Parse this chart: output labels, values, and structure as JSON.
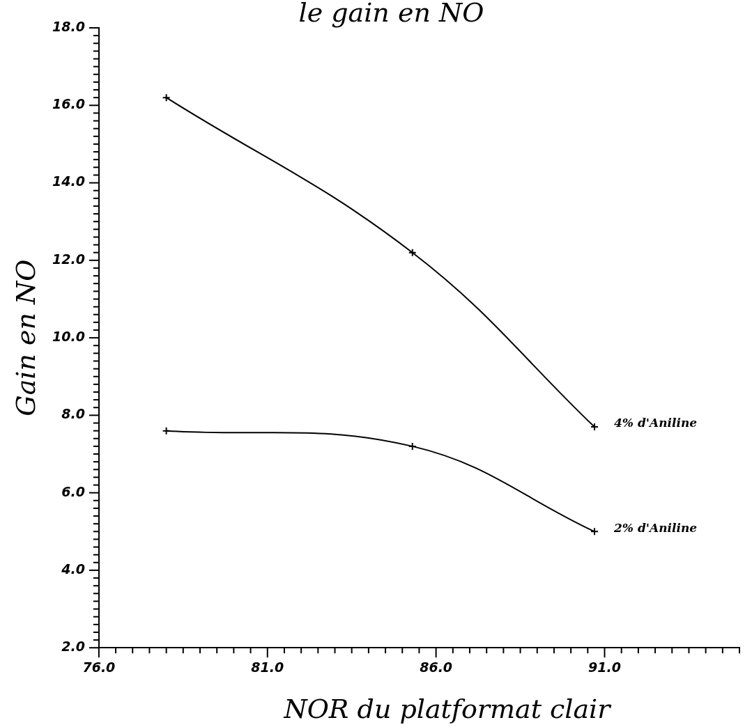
{
  "chart_data": {
    "type": "line",
    "title": "le gain en NO",
    "xlabel": "NOR du platformat clair",
    "ylabel": "Gain en NO",
    "x": [
      78,
      85.3,
      90.7
    ],
    "series": [
      {
        "name": "4% d'Aniline",
        "color": "#000000",
        "values": [
          16.2,
          12.2,
          7.7
        ]
      },
      {
        "name": "2% d'Aniline",
        "color": "#000000",
        "values": [
          7.6,
          7.2,
          5.0
        ]
      }
    ],
    "marker": "cross",
    "line_style": "solid",
    "grid": false,
    "legend": false,
    "xlim": [
      76,
      95
    ],
    "xticks": [
      {
        "value": 76,
        "label": "76.0"
      },
      {
        "value": 76.5,
        "label": null
      },
      {
        "value": 77,
        "label": null
      },
      {
        "value": 77.5,
        "label": null
      },
      {
        "value": 78,
        "label": null
      },
      {
        "value": 78.5,
        "label": null
      },
      {
        "value": 79,
        "label": null
      },
      {
        "value": 79.5,
        "label": null
      },
      {
        "value": 80,
        "label": null
      },
      {
        "value": 80.5,
        "label": null
      },
      {
        "value": 81,
        "label": "81.0"
      },
      {
        "value": 81.5,
        "label": null
      },
      {
        "value": 82,
        "label": null
      },
      {
        "value": 82.5,
        "label": null
      },
      {
        "value": 83,
        "label": null
      },
      {
        "value": 83.5,
        "label": null
      },
      {
        "value": 84,
        "label": null
      },
      {
        "value": 84.5,
        "label": null
      },
      {
        "value": 85,
        "label": null
      },
      {
        "value": 85.5,
        "label": null
      },
      {
        "value": 86,
        "label": "86.0"
      },
      {
        "value": 86.5,
        "label": null
      },
      {
        "value": 87,
        "label": null
      },
      {
        "value": 87.5,
        "label": null
      },
      {
        "value": 88,
        "label": null
      },
      {
        "value": 88.5,
        "label": null
      },
      {
        "value": 89,
        "label": null
      },
      {
        "value": 89.5,
        "label": null
      },
      {
        "value": 90,
        "label": null
      },
      {
        "value": 90.5,
        "label": null
      },
      {
        "value": 91,
        "label": "91.0"
      },
      {
        "value": 91.5,
        "label": null
      },
      {
        "value": 92,
        "label": null
      },
      {
        "value": 92.5,
        "label": null
      },
      {
        "value": 93,
        "label": null
      },
      {
        "value": 93.5,
        "label": null
      },
      {
        "value": 94,
        "label": null
      },
      {
        "value": 94.5,
        "label": null
      },
      {
        "value": 95,
        "label": null
      }
    ],
    "ylim": [
      2,
      18
    ],
    "yticks": [
      {
        "value": 2,
        "label": "2.0"
      },
      {
        "value": 2.2,
        "label": null
      },
      {
        "value": 2.4,
        "label": null
      },
      {
        "value": 2.6,
        "label": null
      },
      {
        "value": 2.8,
        "label": null
      },
      {
        "value": 3,
        "label": null
      },
      {
        "value": 3.2,
        "label": null
      },
      {
        "value": 3.4,
        "label": null
      },
      {
        "value": 3.6,
        "label": null
      },
      {
        "value": 3.8,
        "label": null
      },
      {
        "value": 4,
        "label": "4.0"
      },
      {
        "value": 4.2,
        "label": null
      },
      {
        "value": 4.4,
        "label": null
      },
      {
        "value": 4.6,
        "label": null
      },
      {
        "value": 4.8,
        "label": null
      },
      {
        "value": 5,
        "label": null
      },
      {
        "value": 5.2,
        "label": null
      },
      {
        "value": 5.4,
        "label": null
      },
      {
        "value": 5.6,
        "label": null
      },
      {
        "value": 5.8,
        "label": null
      },
      {
        "value": 6,
        "label": "6.0"
      },
      {
        "value": 6.2,
        "label": null
      },
      {
        "value": 6.4,
        "label": null
      },
      {
        "value": 6.6,
        "label": null
      },
      {
        "value": 6.8,
        "label": null
      },
      {
        "value": 7,
        "label": null
      },
      {
        "value": 7.2,
        "label": null
      },
      {
        "value": 7.4,
        "label": null
      },
      {
        "value": 7.6,
        "label": null
      },
      {
        "value": 7.8,
        "label": null
      },
      {
        "value": 8,
        "label": "8.0"
      },
      {
        "value": 8.2,
        "label": null
      },
      {
        "value": 8.4,
        "label": null
      },
      {
        "value": 8.6,
        "label": null
      },
      {
        "value": 8.8,
        "label": null
      },
      {
        "value": 9,
        "label": null
      },
      {
        "value": 9.2,
        "label": null
      },
      {
        "value": 9.4,
        "label": null
      },
      {
        "value": 9.6,
        "label": null
      },
      {
        "value": 9.8,
        "label": null
      },
      {
        "value": 10,
        "label": "10.0"
      },
      {
        "value": 10.2,
        "label": null
      },
      {
        "value": 10.4,
        "label": null
      },
      {
        "value": 10.6,
        "label": null
      },
      {
        "value": 10.8,
        "label": null
      },
      {
        "value": 11,
        "label": null
      },
      {
        "value": 11.2,
        "label": null
      },
      {
        "value": 11.4,
        "label": null
      },
      {
        "value": 11.6,
        "label": null
      },
      {
        "value": 11.8,
        "label": null
      },
      {
        "value": 12,
        "label": "12.0"
      },
      {
        "value": 12.2,
        "label": null
      },
      {
        "value": 12.4,
        "label": null
      },
      {
        "value": 12.6,
        "label": null
      },
      {
        "value": 12.8,
        "label": null
      },
      {
        "value": 13,
        "label": null
      },
      {
        "value": 13.2,
        "label": null
      },
      {
        "value": 13.4,
        "label": null
      },
      {
        "value": 13.6,
        "label": null
      },
      {
        "value": 13.8,
        "label": null
      },
      {
        "value": 14,
        "label": "14.0"
      },
      {
        "value": 14.2,
        "label": null
      },
      {
        "value": 14.4,
        "label": null
      },
      {
        "value": 14.6,
        "label": null
      },
      {
        "value": 14.8,
        "label": null
      },
      {
        "value": 15,
        "label": null
      },
      {
        "value": 15.2,
        "label": null
      },
      {
        "value": 15.4,
        "label": null
      },
      {
        "value": 15.6,
        "label": null
      },
      {
        "value": 15.8,
        "label": null
      },
      {
        "value": 16,
        "label": "16.0"
      },
      {
        "value": 16.2,
        "label": null
      },
      {
        "value": 16.4,
        "label": null
      },
      {
        "value": 16.6,
        "label": null
      },
      {
        "value": 16.8,
        "label": null
      },
      {
        "value": 17,
        "label": null
      },
      {
        "value": 17.2,
        "label": null
      },
      {
        "value": 17.4,
        "label": null
      },
      {
        "value": 17.6,
        "label": null
      },
      {
        "value": 17.8,
        "label": null
      },
      {
        "value": 18,
        "label": "18.0"
      }
    ]
  }
}
